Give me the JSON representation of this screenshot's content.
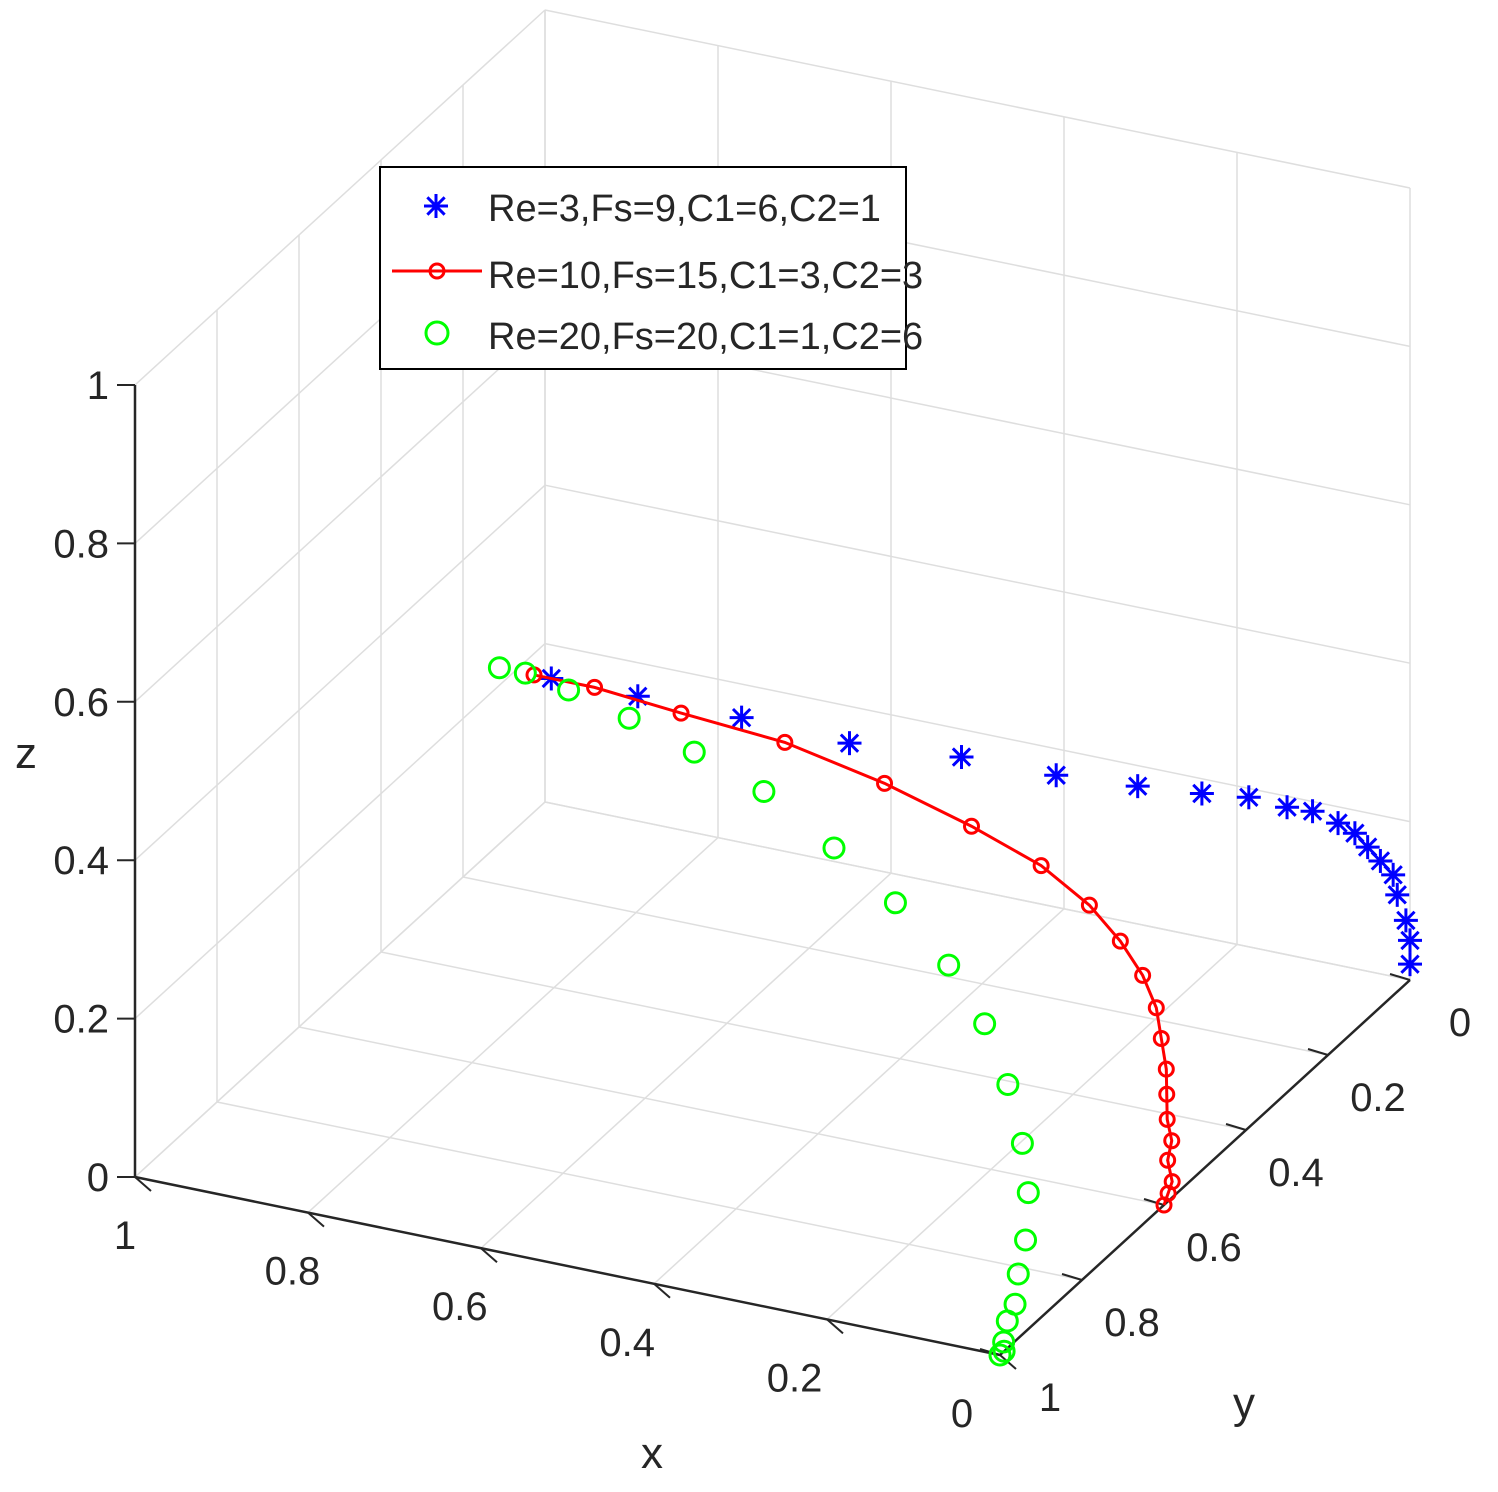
{
  "chart_data": {
    "type": "scatter3d",
    "view": "3d-axes",
    "xlabel": "x",
    "ylabel": "y",
    "zlabel": "z",
    "xlim": [
      0,
      1
    ],
    "ylim": [
      0,
      1
    ],
    "zlim": [
      0,
      1
    ],
    "x_ticks": [
      "0",
      "0.2",
      "0.4",
      "0.6",
      "0.8",
      "1"
    ],
    "y_ticks": [
      "0",
      "0.2",
      "0.4",
      "0.6",
      "0.8",
      "1"
    ],
    "z_ticks": [
      "0",
      "0.2",
      "0.4",
      "0.6",
      "0.8",
      "1"
    ],
    "grid": true,
    "legend_position": "top-left",
    "series": [
      {
        "name": "Re=3,Fs=9,C1=6,C2=1",
        "color": "#0000ff",
        "marker": "asterisk",
        "line": false,
        "points": [
          [
            0.0,
            0.0,
            0.02
          ],
          [
            0.0,
            0.0,
            0.05
          ],
          [
            0.0,
            0.01,
            0.08
          ],
          [
            0.01,
            0.01,
            0.11
          ],
          [
            0.01,
            0.02,
            0.14
          ],
          [
            0.02,
            0.03,
            0.16
          ],
          [
            0.03,
            0.04,
            0.18
          ],
          [
            0.04,
            0.05,
            0.2
          ],
          [
            0.05,
            0.07,
            0.22
          ],
          [
            0.07,
            0.09,
            0.24
          ],
          [
            0.09,
            0.11,
            0.25
          ],
          [
            0.12,
            0.14,
            0.27
          ],
          [
            0.16,
            0.17,
            0.28
          ],
          [
            0.22,
            0.2,
            0.29
          ],
          [
            0.3,
            0.23,
            0.3
          ],
          [
            0.4,
            0.25,
            0.31
          ],
          [
            0.52,
            0.27,
            0.31
          ],
          [
            0.64,
            0.28,
            0.32
          ],
          [
            0.76,
            0.28,
            0.32
          ],
          [
            0.86,
            0.28,
            0.32
          ]
        ]
      },
      {
        "name": "Re=10,Fs=15,C1=3,C2=3",
        "color": "#ff0000",
        "marker": "circle",
        "line": true,
        "points": [
          [
            0.0,
            0.6,
            0.0
          ],
          [
            0.0,
            0.59,
            0.01
          ],
          [
            0.0,
            0.58,
            0.02
          ],
          [
            0.01,
            0.57,
            0.04
          ],
          [
            0.01,
            0.56,
            0.06
          ],
          [
            0.02,
            0.55,
            0.08
          ],
          [
            0.03,
            0.53,
            0.1
          ],
          [
            0.04,
            0.51,
            0.12
          ],
          [
            0.06,
            0.48,
            0.14
          ],
          [
            0.08,
            0.45,
            0.16
          ],
          [
            0.11,
            0.42,
            0.18
          ],
          [
            0.15,
            0.39,
            0.2
          ],
          [
            0.2,
            0.36,
            0.22
          ],
          [
            0.27,
            0.33,
            0.24
          ],
          [
            0.36,
            0.31,
            0.26
          ],
          [
            0.47,
            0.29,
            0.28
          ],
          [
            0.59,
            0.28,
            0.3
          ],
          [
            0.71,
            0.28,
            0.31
          ],
          [
            0.81,
            0.28,
            0.32
          ],
          [
            0.88,
            0.28,
            0.32
          ]
        ]
      },
      {
        "name": "Re=20,Fs=20,C1=1,C2=6",
        "color": "#00ff00",
        "marker": "circle",
        "line": false,
        "points": [
          [
            0.0,
            1.0,
            0.0
          ],
          [
            0.0,
            0.99,
            0.0
          ],
          [
            0.01,
            0.97,
            0.0
          ],
          [
            0.02,
            0.94,
            0.01
          ],
          [
            0.03,
            0.9,
            0.01
          ],
          [
            0.05,
            0.85,
            0.02
          ],
          [
            0.07,
            0.79,
            0.03
          ],
          [
            0.1,
            0.72,
            0.05
          ],
          [
            0.14,
            0.65,
            0.07
          ],
          [
            0.19,
            0.58,
            0.1
          ],
          [
            0.25,
            0.51,
            0.13
          ],
          [
            0.32,
            0.45,
            0.16
          ],
          [
            0.41,
            0.39,
            0.19
          ],
          [
            0.5,
            0.35,
            0.22
          ],
          [
            0.6,
            0.31,
            0.25
          ],
          [
            0.69,
            0.29,
            0.27
          ],
          [
            0.77,
            0.28,
            0.29
          ],
          [
            0.84,
            0.28,
            0.31
          ],
          [
            0.89,
            0.28,
            0.32
          ],
          [
            0.92,
            0.28,
            0.32
          ]
        ]
      }
    ]
  }
}
